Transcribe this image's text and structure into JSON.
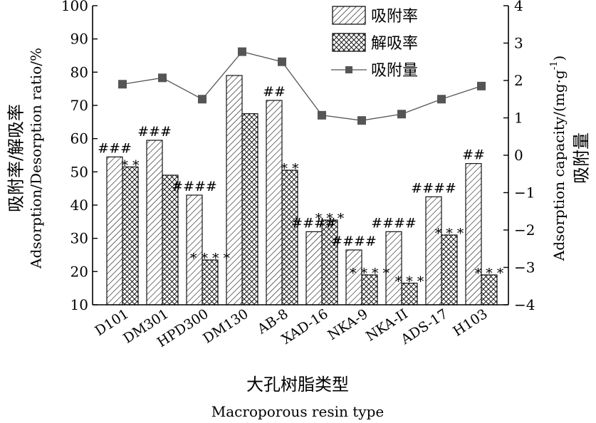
{
  "chart_data": {
    "type": "bar",
    "categories": [
      "D101",
      "DM301",
      "HPD300",
      "DM130",
      "AB-8",
      "XAD-16",
      "NKA-9",
      "NKA-II",
      "ADS-17",
      "H103"
    ],
    "series": [
      {
        "name": "吸附率",
        "type": "bar",
        "pattern": "diagonal-hatch",
        "axis": "left",
        "values": [
          54.5,
          59.5,
          43,
          79,
          71.5,
          32,
          26.5,
          32,
          42.5,
          52.5
        ]
      },
      {
        "name": "解吸率",
        "type": "bar",
        "pattern": "cross-hatch",
        "axis": "left",
        "values": [
          51.5,
          49,
          23.5,
          67.5,
          50.5,
          35.5,
          19,
          16.5,
          31,
          19
        ]
      },
      {
        "name": "吸附量",
        "type": "line",
        "marker": "square",
        "axis": "right",
        "values": [
          1.9,
          2.07,
          1.5,
          2.77,
          2.5,
          1.07,
          0.93,
          1.1,
          1.5,
          1.85
        ]
      }
    ],
    "bar_annotations": [
      "###",
      "###",
      "####",
      "",
      "##",
      "####",
      "####",
      "####",
      "####",
      "##"
    ],
    "desorb_annotations": [
      "**",
      "",
      "****",
      "",
      "**",
      "***",
      "****",
      "***",
      "***",
      "***"
    ],
    "yaxis_left": {
      "label_cn": "吸附率/解吸率",
      "label_en": "Adsorption/Desorption ratio/%",
      "ylim": [
        10,
        100
      ],
      "ticks": [
        10,
        20,
        30,
        40,
        50,
        60,
        70,
        80,
        90,
        100
      ]
    },
    "yaxis_right": {
      "label_en": "Adsorption capacity/(mg·g",
      "label_en_sup": "-1",
      "label_en_end": ")",
      "label_cn": "吸附量",
      "ylim": [
        -4,
        4
      ],
      "ticks": [
        -4,
        -3,
        -2,
        -1,
        0,
        1,
        2,
        3,
        4
      ]
    },
    "xaxis": {
      "label_cn": "大孔树脂类型",
      "label_en": "Macroporous resin type"
    },
    "legend": {
      "position": "top-right"
    },
    "grid": false
  },
  "colors": {
    "hatch": "#000000",
    "line": "#555555",
    "marker": "#555555"
  }
}
